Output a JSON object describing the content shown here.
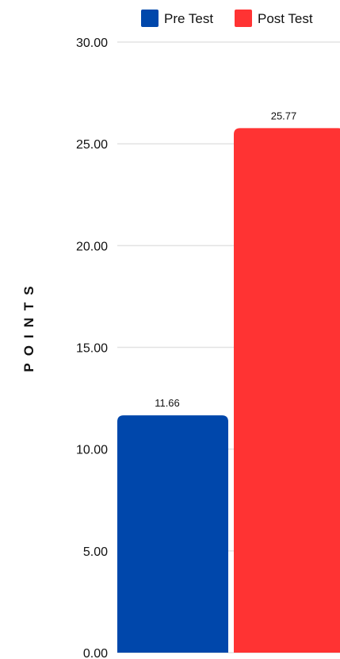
{
  "chart_data": {
    "type": "bar",
    "title": "",
    "xlabel": "",
    "ylabel": "POINTS",
    "ylim": [
      0,
      30
    ],
    "yticks": [
      "0.00",
      "5.00",
      "10.00",
      "15.00",
      "20.00",
      "25.00",
      "30.00"
    ],
    "grid": true,
    "legend_position": "top",
    "series": [
      {
        "name": "Pre Test",
        "color": "#0047AB",
        "value": 11.66,
        "label": "11.66"
      },
      {
        "name": "Post Test",
        "color": "#FF3333",
        "value": 25.77,
        "label": "25.77"
      }
    ]
  }
}
